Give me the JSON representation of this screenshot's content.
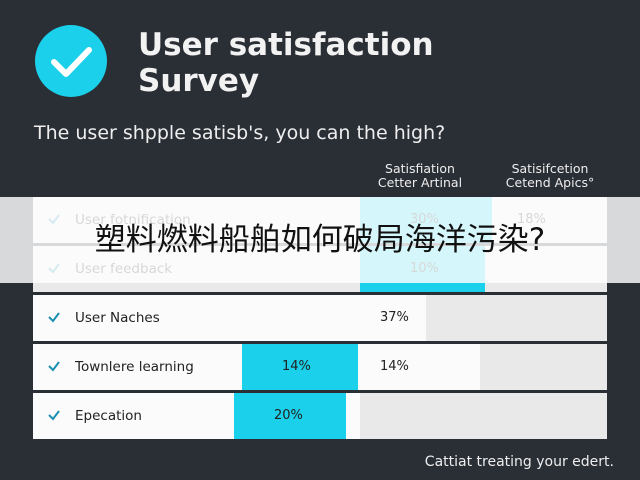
{
  "header": {
    "title_lines": [
      "User satisfaction",
      "Survey"
    ],
    "subtitle": "The user shpple satisb's, you can the high?"
  },
  "table": {
    "columns": [
      [
        "Satisfiation",
        "Cetter Artinal"
      ],
      [
        "Satisifcetion",
        "Cetend Apics°"
      ]
    ],
    "rows": [
      {
        "label": "User fotnification",
        "values": [
          "30%",
          "18%"
        ]
      },
      {
        "label": "User feedback",
        "values": [
          "10%"
        ]
      },
      {
        "label": "User Naches",
        "values": [
          "37%"
        ]
      },
      {
        "label": "Townlere learning",
        "values": [
          "14%",
          "14%"
        ]
      },
      {
        "label": "Epecation",
        "values": [
          "20%"
        ]
      }
    ]
  },
  "banner": "塑料燃料船舶如何破局海洋污染?",
  "footer": "Cattiat treating your edert."
}
